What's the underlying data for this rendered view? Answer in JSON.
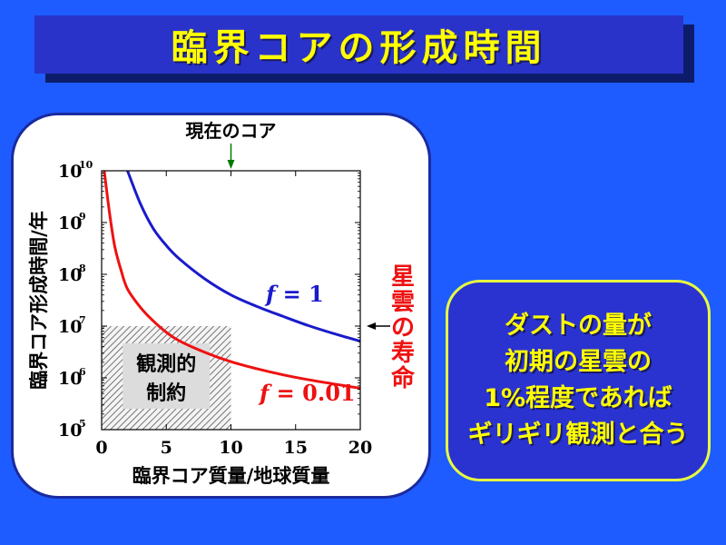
{
  "slide": {
    "title": "臨界コアの形成時間",
    "callout": "ダストの量が\n初期の星雲の\n1%程度であれば\nギリギリ観測と合う"
  },
  "colors": {
    "background": "#1e5cff",
    "title_text": "#ffff00",
    "series_f1": "#1a1acc",
    "series_f001": "#ee1111",
    "annotation_green": "#007a00",
    "annotation_red": "#ee1111"
  },
  "chart_data": {
    "type": "line",
    "xlabel": "臨界コア質量/地球質量",
    "ylabel": "臨界コア形成時間/年",
    "xlim": [
      0,
      20
    ],
    "ylim": [
      100000,
      10000000000
    ],
    "yscale": "log",
    "x_ticks": [
      0,
      5,
      10,
      15,
      20
    ],
    "y_ticks": [
      {
        "base": "10",
        "exp": "5",
        "value": 100000
      },
      {
        "base": "10",
        "exp": "6",
        "value": 1000000
      },
      {
        "base": "10",
        "exp": "7",
        "value": 10000000
      },
      {
        "base": "10",
        "exp": "8",
        "value": 100000000
      },
      {
        "base": "10",
        "exp": "9",
        "value": 1000000000
      },
      {
        "base": "10",
        "exp": "10",
        "value": 10000000000
      }
    ],
    "series": [
      {
        "name": "f = 1",
        "label_var": "f",
        "label_rest": " = 1",
        "color": "#1a1acc",
        "x": [
          2,
          3,
          4,
          5,
          6,
          8,
          10,
          12,
          14,
          16,
          18,
          20
        ],
        "y": [
          10000000000,
          2300000000,
          760000000,
          360000000,
          200000000,
          81000000,
          40000000,
          24000000,
          15500000,
          10200000,
          7100000,
          5100000
        ]
      },
      {
        "name": "f = 0.01",
        "label_var": "f",
        "label_rest": " = 0.01",
        "color": "#ee1111",
        "x": [
          0.2,
          0.6,
          1,
          1.5,
          2,
          3,
          4,
          5,
          6,
          8,
          10,
          12,
          14,
          16,
          18,
          20
        ],
        "y": [
          10000000000,
          1600000000,
          360000000,
          120000000,
          52000000,
          23000000,
          12500000,
          7600000,
          5200000,
          3100000,
          2050000,
          1500000,
          1150000,
          920000,
          760000,
          630000
        ]
      }
    ],
    "annotations": {
      "current_core": "現在のコア",
      "current_core_x": 10,
      "nebula_lifetime": "星雲の寿命",
      "nebula_lifetime_y": 10000000,
      "constraint_region": {
        "label_line1": "観測的",
        "label_line2": "制約",
        "x_range": [
          0,
          10
        ],
        "y_range": [
          100000,
          10000000
        ]
      }
    },
    "grid": false,
    "legend": "inline labels"
  }
}
